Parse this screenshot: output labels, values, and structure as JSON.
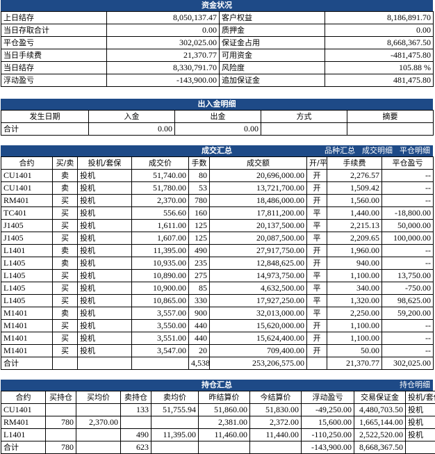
{
  "funds": {
    "title": "资金状况",
    "rows": [
      [
        "上日结存",
        "8,050,137.47",
        "客户权益",
        "8,186,891.70"
      ],
      [
        "当日存取合计",
        "0.00",
        "质押金",
        "0.00"
      ],
      [
        "平仓盈亏",
        "302,025.00",
        "保证金占用",
        "8,668,367.50"
      ],
      [
        "当日手续费",
        "21,370.77",
        "可用资金",
        "-481,475.80"
      ],
      [
        "当日结存",
        "8,330,791.70",
        "风险度",
        "105.88 %"
      ],
      [
        "浮动盈亏",
        "-143,900.00",
        "追加保证金",
        "481,475.80"
      ]
    ]
  },
  "inout": {
    "title": "出入金明细",
    "headers": [
      "发生日期",
      "入金",
      "出金",
      "方式",
      "摘要"
    ],
    "total": [
      "合计",
      "0.00",
      "0.00",
      "",
      ""
    ]
  },
  "trades": {
    "title": "成交汇总",
    "links": [
      "品种汇总",
      "成交明细",
      "平仓明细"
    ],
    "headers": [
      "合约",
      "买/卖",
      "投机/套保",
      "成交价",
      "手数",
      "成交额",
      "开/平",
      "手续费",
      "平仓盈亏"
    ],
    "rows": [
      [
        "CU1401",
        "卖",
        "投机",
        "51,740.00",
        "80",
        "20,696,000.00",
        "开",
        "2,276.57",
        "--"
      ],
      [
        "CU1401",
        "卖",
        "投机",
        "51,780.00",
        "53",
        "13,721,700.00",
        "开",
        "1,509.42",
        "--"
      ],
      [
        "RM401",
        "买",
        "投机",
        "2,370.00",
        "780",
        "18,486,000.00",
        "开",
        "1,560.00",
        "--"
      ],
      [
        "TC401",
        "买",
        "投机",
        "556.60",
        "160",
        "17,811,200.00",
        "平",
        "1,440.00",
        "-18,800.00"
      ],
      [
        "J1405",
        "买",
        "投机",
        "1,611.00",
        "125",
        "20,137,500.00",
        "平",
        "2,215.13",
        "50,000.00"
      ],
      [
        "J1405",
        "买",
        "投机",
        "1,607.00",
        "125",
        "20,087,500.00",
        "平",
        "2,209.65",
        "100,000.00"
      ],
      [
        "L1401",
        "卖",
        "投机",
        "11,395.00",
        "490",
        "27,917,750.00",
        "开",
        "1,960.00",
        "--"
      ],
      [
        "L1405",
        "卖",
        "投机",
        "10,935.00",
        "235",
        "12,848,625.00",
        "开",
        "940.00",
        "--"
      ],
      [
        "L1405",
        "买",
        "投机",
        "10,890.00",
        "275",
        "14,973,750.00",
        "平",
        "1,100.00",
        "13,750.00"
      ],
      [
        "L1405",
        "买",
        "投机",
        "10,900.00",
        "85",
        "4,632,500.00",
        "平",
        "340.00",
        "-750.00"
      ],
      [
        "L1405",
        "买",
        "投机",
        "10,865.00",
        "330",
        "17,927,250.00",
        "平",
        "1,320.00",
        "98,625.00"
      ],
      [
        "M1401",
        "卖",
        "投机",
        "3,557.00",
        "900",
        "32,013,000.00",
        "平",
        "2,250.00",
        "59,200.00"
      ],
      [
        "M1401",
        "买",
        "投机",
        "3,550.00",
        "440",
        "15,620,000.00",
        "开",
        "1,100.00",
        "--"
      ],
      [
        "M1401",
        "买",
        "投机",
        "3,551.00",
        "440",
        "15,624,400.00",
        "开",
        "1,100.00",
        "--"
      ],
      [
        "M1401",
        "买",
        "投机",
        "3,547.00",
        "20",
        "709,400.00",
        "开",
        "50.00",
        "--"
      ]
    ],
    "total": [
      "合计",
      "",
      "",
      "",
      "4,538",
      "253,206,575.00",
      "",
      "21,370.77",
      "302,025.00"
    ]
  },
  "positions": {
    "title": "持仓汇总",
    "links": [
      "持仓明细"
    ],
    "headers": [
      "合约",
      "买持仓",
      "买均价",
      "卖持仓",
      "卖均价",
      "昨结算价",
      "今结算价",
      "浮动盈亏",
      "交易保证金",
      "投机/套保"
    ],
    "rows": [
      [
        "CU1401",
        "",
        "",
        "133",
        "51,755.94",
        "51,860.00",
        "51,830.00",
        "-49,250.00",
        "4,480,703.50",
        "投机"
      ],
      [
        "RM401",
        "780",
        "2,370.00",
        "",
        "",
        "2,381.00",
        "2,372.00",
        "15,600.00",
        "1,665,144.00",
        "投机"
      ],
      [
        "L1401",
        "",
        "",
        "490",
        "11,395.00",
        "11,460.00",
        "11,440.00",
        "-110,250.00",
        "2,522,520.00",
        "投机"
      ]
    ],
    "total": [
      "合计",
      "780",
      "",
      "623",
      "",
      "",
      "",
      "-143,900.00",
      "8,668,367.50",
      ""
    ]
  }
}
